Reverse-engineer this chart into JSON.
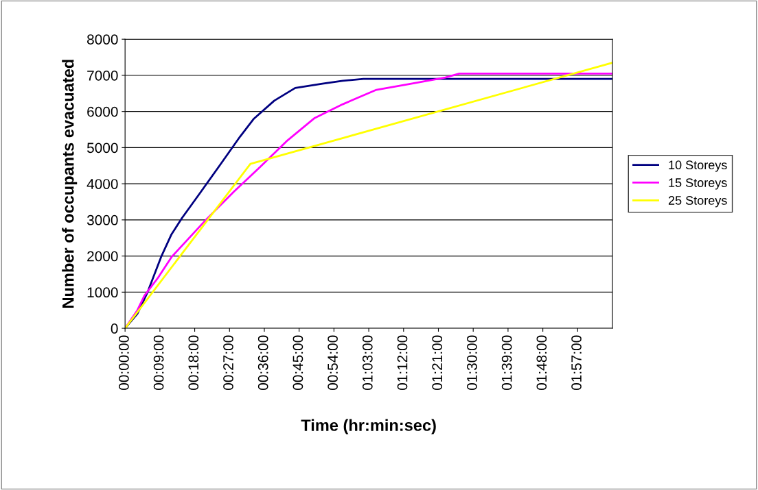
{
  "chart_data": {
    "type": "line",
    "xlabel": "Time (hr:min:sec)",
    "ylabel": "Number of occupants evacuated",
    "xlim": [
      0,
      2.1
    ],
    "ylim": [
      0,
      8000
    ],
    "xticks": [
      {
        "value": 0,
        "label": "00:00:00"
      },
      {
        "value": 0.15,
        "label": "00:09:00"
      },
      {
        "value": 0.3,
        "label": "00:18:00"
      },
      {
        "value": 0.45,
        "label": "00:27:00"
      },
      {
        "value": 0.6,
        "label": "00:36:00"
      },
      {
        "value": 0.75,
        "label": "00:45:00"
      },
      {
        "value": 0.9,
        "label": "00:54:00"
      },
      {
        "value": 1.05,
        "label": "01:03:00"
      },
      {
        "value": 1.2,
        "label": "01:12:00"
      },
      {
        "value": 1.35,
        "label": "01:21:00"
      },
      {
        "value": 1.5,
        "label": "01:30:00"
      },
      {
        "value": 1.65,
        "label": "01:39:00"
      },
      {
        "value": 1.8,
        "label": "01:48:00"
      },
      {
        "value": 1.95,
        "label": "01:57:00"
      }
    ],
    "yticks": [
      0,
      1000,
      2000,
      3000,
      4000,
      5000,
      6000,
      7000,
      8000
    ],
    "grid": "y",
    "legend": "right",
    "marker": "none",
    "line_style": "solid",
    "series": [
      {
        "name": "10 Storeys",
        "color": "#000080",
        "x": [
          0,
          0.053,
          0.097,
          0.157,
          0.2,
          0.245,
          0.318,
          0.407,
          0.495,
          0.555,
          0.643,
          0.733,
          0.85,
          0.938,
          1.027,
          2.1
        ],
        "values": [
          0,
          400,
          1000,
          2000,
          2600,
          3050,
          3700,
          4500,
          5300,
          5800,
          6300,
          6650,
          6770,
          6850,
          6900,
          6900
        ]
      },
      {
        "name": "15 Storeys",
        "color": "#ff00ff",
        "x": [
          0,
          0.053,
          0.083,
          0.142,
          0.2,
          0.348,
          0.467,
          0.583,
          0.7,
          0.817,
          0.938,
          1.083,
          1.233,
          1.38,
          1.44,
          2.1
        ],
        "values": [
          0,
          500,
          900,
          1400,
          1970,
          3000,
          3770,
          4470,
          5200,
          5820,
          6200,
          6600,
          6770,
          6940,
          7050,
          7050
        ]
      },
      {
        "name": "25 Storeys",
        "color": "#ffff00",
        "x": [
          0,
          0.54,
          2.1
        ],
        "values": [
          0,
          4550,
          7350
        ]
      }
    ]
  }
}
